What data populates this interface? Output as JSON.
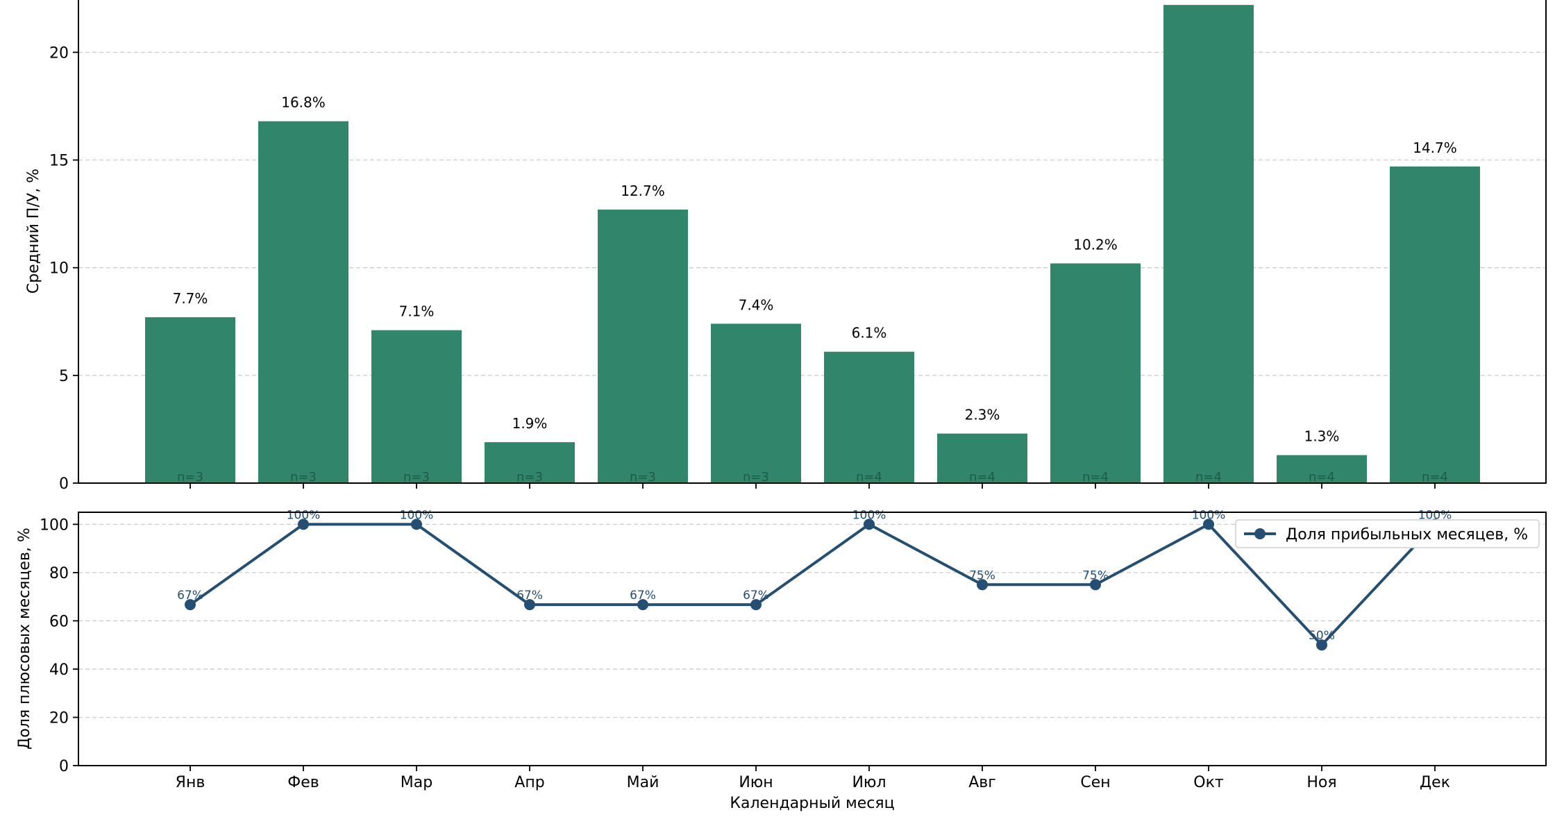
{
  "chart_data": [
    {
      "type": "bar",
      "categories": [
        "Янв",
        "Фев",
        "Мар",
        "Апр",
        "Май",
        "Июн",
        "Июл",
        "Авг",
        "Сен",
        "Окт",
        "Ноя",
        "Дек"
      ],
      "values": [
        7.7,
        16.8,
        7.1,
        1.9,
        12.7,
        7.4,
        6.1,
        2.3,
        10.2,
        22.2,
        1.3,
        14.7
      ],
      "value_labels": [
        "7.7%",
        "16.8%",
        "7.1%",
        "1.9%",
        "12.7%",
        "7.4%",
        "6.1%",
        "2.3%",
        "10.2%",
        "",
        "1.3%",
        "14.7%"
      ],
      "n_labels": [
        "n=3",
        "n=3",
        "n=3",
        "n=3",
        "n=3",
        "n=3",
        "n=4",
        "n=4",
        "n=4",
        "n=4",
        "n=4",
        "n=4"
      ],
      "ylabel": "Средний П/У, %",
      "ylim": [
        0,
        22.3
      ],
      "yticks": [
        0,
        5,
        10,
        15,
        20
      ],
      "grid": true,
      "color": "#31856b"
    },
    {
      "type": "line",
      "categories": [
        "Янв",
        "Фев",
        "Мар",
        "Апр",
        "Май",
        "Июн",
        "Июл",
        "Авг",
        "Сен",
        "Окт",
        "Ноя",
        "Дек"
      ],
      "series": [
        {
          "name": "Доля прибыльных месяцев, %",
          "values": [
            66.7,
            100,
            100,
            66.7,
            66.7,
            66.7,
            100,
            75,
            75,
            100,
            50,
            100
          ],
          "point_labels": [
            "67%",
            "100%",
            "100%",
            "67%",
            "67%",
            "67%",
            "100%",
            "75%",
            "75%",
            "100%",
            "50%",
            "100%"
          ],
          "color": "#244e72"
        }
      ],
      "xlabel": "Календарный месяц",
      "ylabel": "Доля плюсовых месяцев, %",
      "ylim": [
        0,
        105
      ],
      "yticks": [
        0,
        20,
        40,
        60,
        80,
        100
      ],
      "grid": true,
      "legend_position": "top-right"
    }
  ]
}
